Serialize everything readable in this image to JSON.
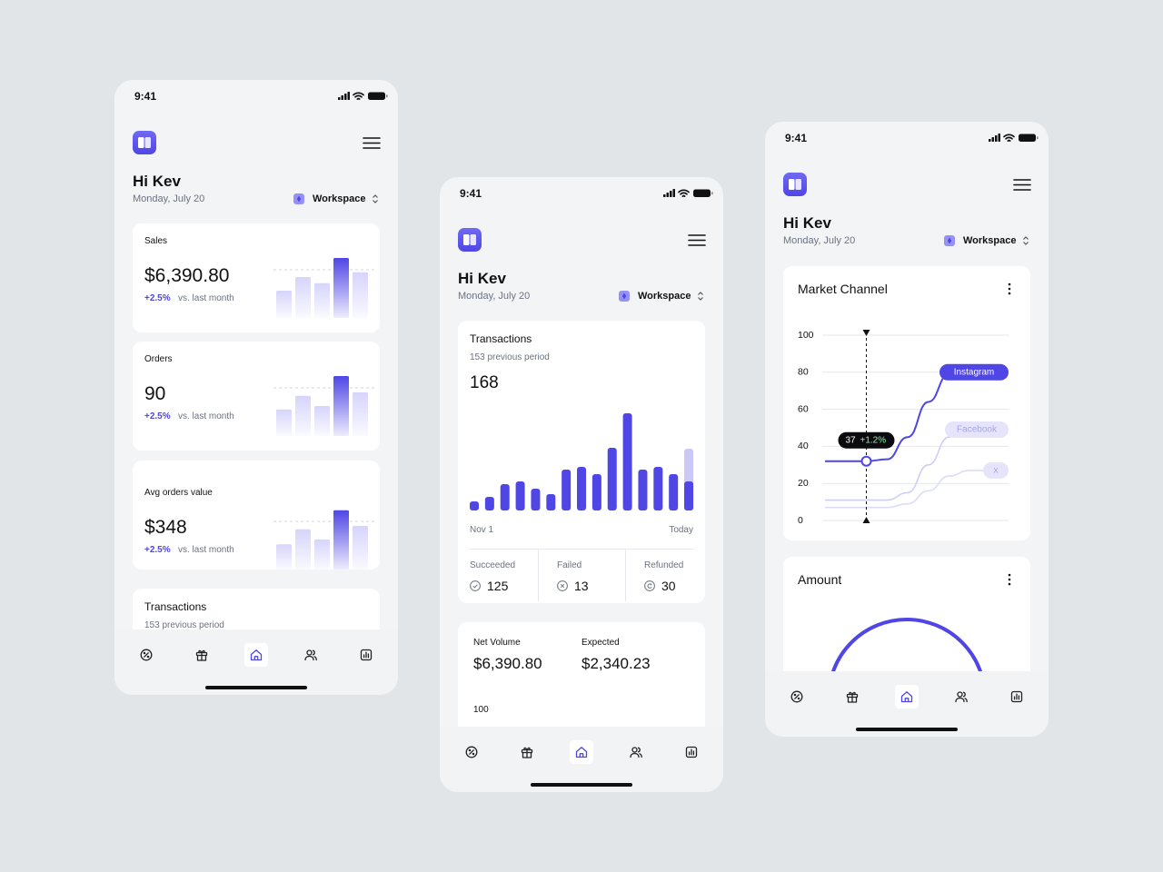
{
  "screens": [
    {
      "time": "9:41",
      "greeting": "Hi Kev",
      "date": "Monday, July 20",
      "workspace": "Workspace",
      "cards": [
        {
          "title": "Sales",
          "value": "$6,390.80",
          "change": "+2.5%",
          "note": "vs. last month",
          "bars": [
            40,
            60,
            51,
            88,
            67
          ],
          "highlight": 3
        },
        {
          "title": "Orders",
          "value": 90,
          "change": "+2.5%",
          "note": "vs. last month",
          "bars": [
            39,
            59,
            44,
            88,
            64
          ],
          "highlight": 3
        },
        {
          "title": "Avg orders value",
          "value": "$348",
          "change": "+2.5%",
          "note": "vs. last month",
          "bars": [
            37,
            59,
            44,
            87,
            64
          ],
          "highlight": 3
        }
      ],
      "transactions": {
        "title": "Transactions",
        "subtitle": "153 previous period"
      }
    },
    {
      "time": "9:41",
      "greeting": "Hi Kev",
      "date": "Monday, July 20",
      "workspace": "Workspace",
      "transactions": {
        "title": "Transactions",
        "subtitle": "153 previous period",
        "value": 168,
        "bars": [
          10,
          15,
          29,
          32,
          24,
          18,
          45,
          48,
          40,
          69,
          107,
          45,
          48,
          40,
          32
        ],
        "projected": 68,
        "start": "Nov 1",
        "end": "Today",
        "stats": [
          {
            "label": "Succeeded",
            "value": 125
          },
          {
            "label": "Failed",
            "value": 13
          },
          {
            "label": "Refunded",
            "value": 30
          }
        ]
      },
      "volume": {
        "items": [
          {
            "label": "Net Volume",
            "value": "$6,390.80"
          },
          {
            "label": "Expected",
            "value": "$2,340.23"
          }
        ],
        "tick": 100
      }
    },
    {
      "time": "9:41",
      "greeting": "Hi Kev",
      "date": "Monday, July 20",
      "workspace": "Workspace",
      "market": {
        "title": "Market Channel",
        "ylim": [
          0,
          100
        ],
        "yticks": [
          0,
          20,
          40,
          60,
          80,
          100
        ],
        "series": [
          {
            "name": "Instagram",
            "color": "#4f46e5",
            "values": [
              32,
              32,
              32,
              33,
              45,
              64,
              79,
              80,
              80
            ]
          },
          {
            "name": "Facebook",
            "color": "#cfcdf7",
            "values": [
              11,
              11,
              11,
              11,
              15,
              30,
              45,
              49,
              49
            ]
          },
          {
            "name": "x",
            "color": "#dcdbf8",
            "values": [
              7,
              7,
              7,
              7,
              9,
              16,
              24,
              27,
              27
            ]
          }
        ],
        "tooltip": {
          "value": 37,
          "change": "+1.2%"
        }
      },
      "amount": {
        "title": "Amount"
      }
    }
  ]
}
